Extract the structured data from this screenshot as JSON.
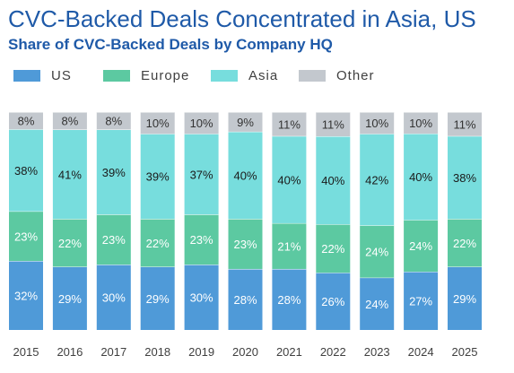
{
  "title": "CVC-Backed Deals Concentrated in Asia, US",
  "subtitle": "Share of CVC-Backed Deals by Company HQ",
  "legend": [
    {
      "label": "US",
      "color": "#4f9ad8"
    },
    {
      "label": "Europe",
      "color": "#5cc9a1"
    },
    {
      "label": "Asia",
      "color": "#77dddd"
    },
    {
      "label": "Other",
      "color": "#c3c8ce"
    }
  ],
  "chart_data": {
    "type": "bar",
    "stacked": true,
    "title": "CVC-Backed Deals Concentrated in Asia, US",
    "subtitle": "Share of CVC-Backed Deals by Company HQ",
    "categories": [
      "2015",
      "2016",
      "2017",
      "2018",
      "2019",
      "2020",
      "2021",
      "2022",
      "2023",
      "2024",
      "2025"
    ],
    "series": [
      {
        "name": "US",
        "color": "#4f9ad8",
        "label_color": "#ffffff",
        "values": [
          32,
          29,
          30,
          29,
          30,
          28,
          28,
          26,
          24,
          27,
          29
        ]
      },
      {
        "name": "Europe",
        "color": "#5cc9a1",
        "label_color": "#ffffff",
        "values": [
          23,
          22,
          23,
          22,
          23,
          23,
          21,
          22,
          24,
          24,
          22
        ]
      },
      {
        "name": "Asia",
        "color": "#77dddd",
        "label_color": "#1a1a1a",
        "values": [
          38,
          41,
          39,
          39,
          37,
          40,
          40,
          40,
          42,
          40,
          38
        ]
      },
      {
        "name": "Other",
        "color": "#c3c8ce",
        "label_color": "#333333",
        "values": [
          8,
          8,
          8,
          10,
          10,
          9,
          11,
          11,
          10,
          10,
          11
        ]
      }
    ],
    "ylim": [
      0,
      100
    ],
    "value_suffix": "%",
    "legend_position": "top-left",
    "grid": false
  }
}
